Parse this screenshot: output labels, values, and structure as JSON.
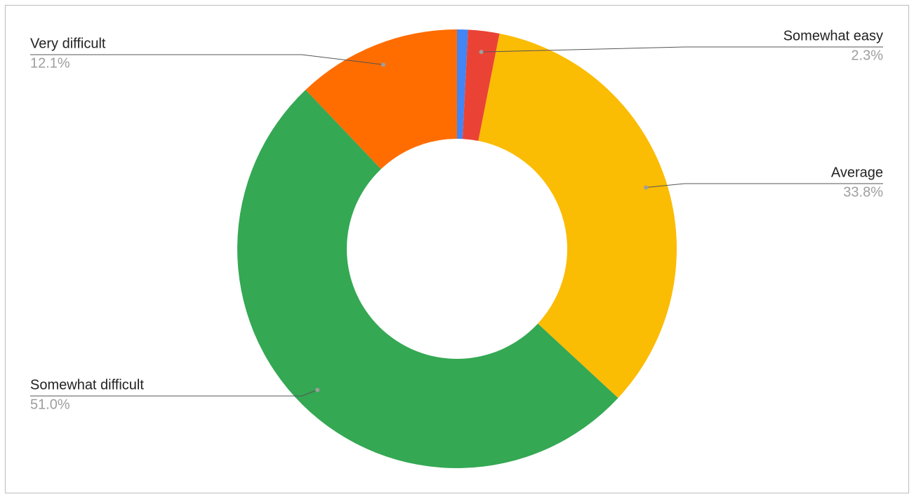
{
  "chart_data": {
    "type": "donut",
    "categories": [
      null,
      "Somewhat easy",
      "Average",
      "Somewhat difficult",
      "Very difficult"
    ],
    "values": [
      0.8,
      2.3,
      33.8,
      51.0,
      12.1
    ],
    "value_labels": [
      null,
      "2.3%",
      "33.8%",
      "51.0%",
      "12.1%"
    ],
    "colors": [
      "#4285f4",
      "#ea4335",
      "#fbbc04",
      "#34a853",
      "#ff6d01"
    ]
  }
}
